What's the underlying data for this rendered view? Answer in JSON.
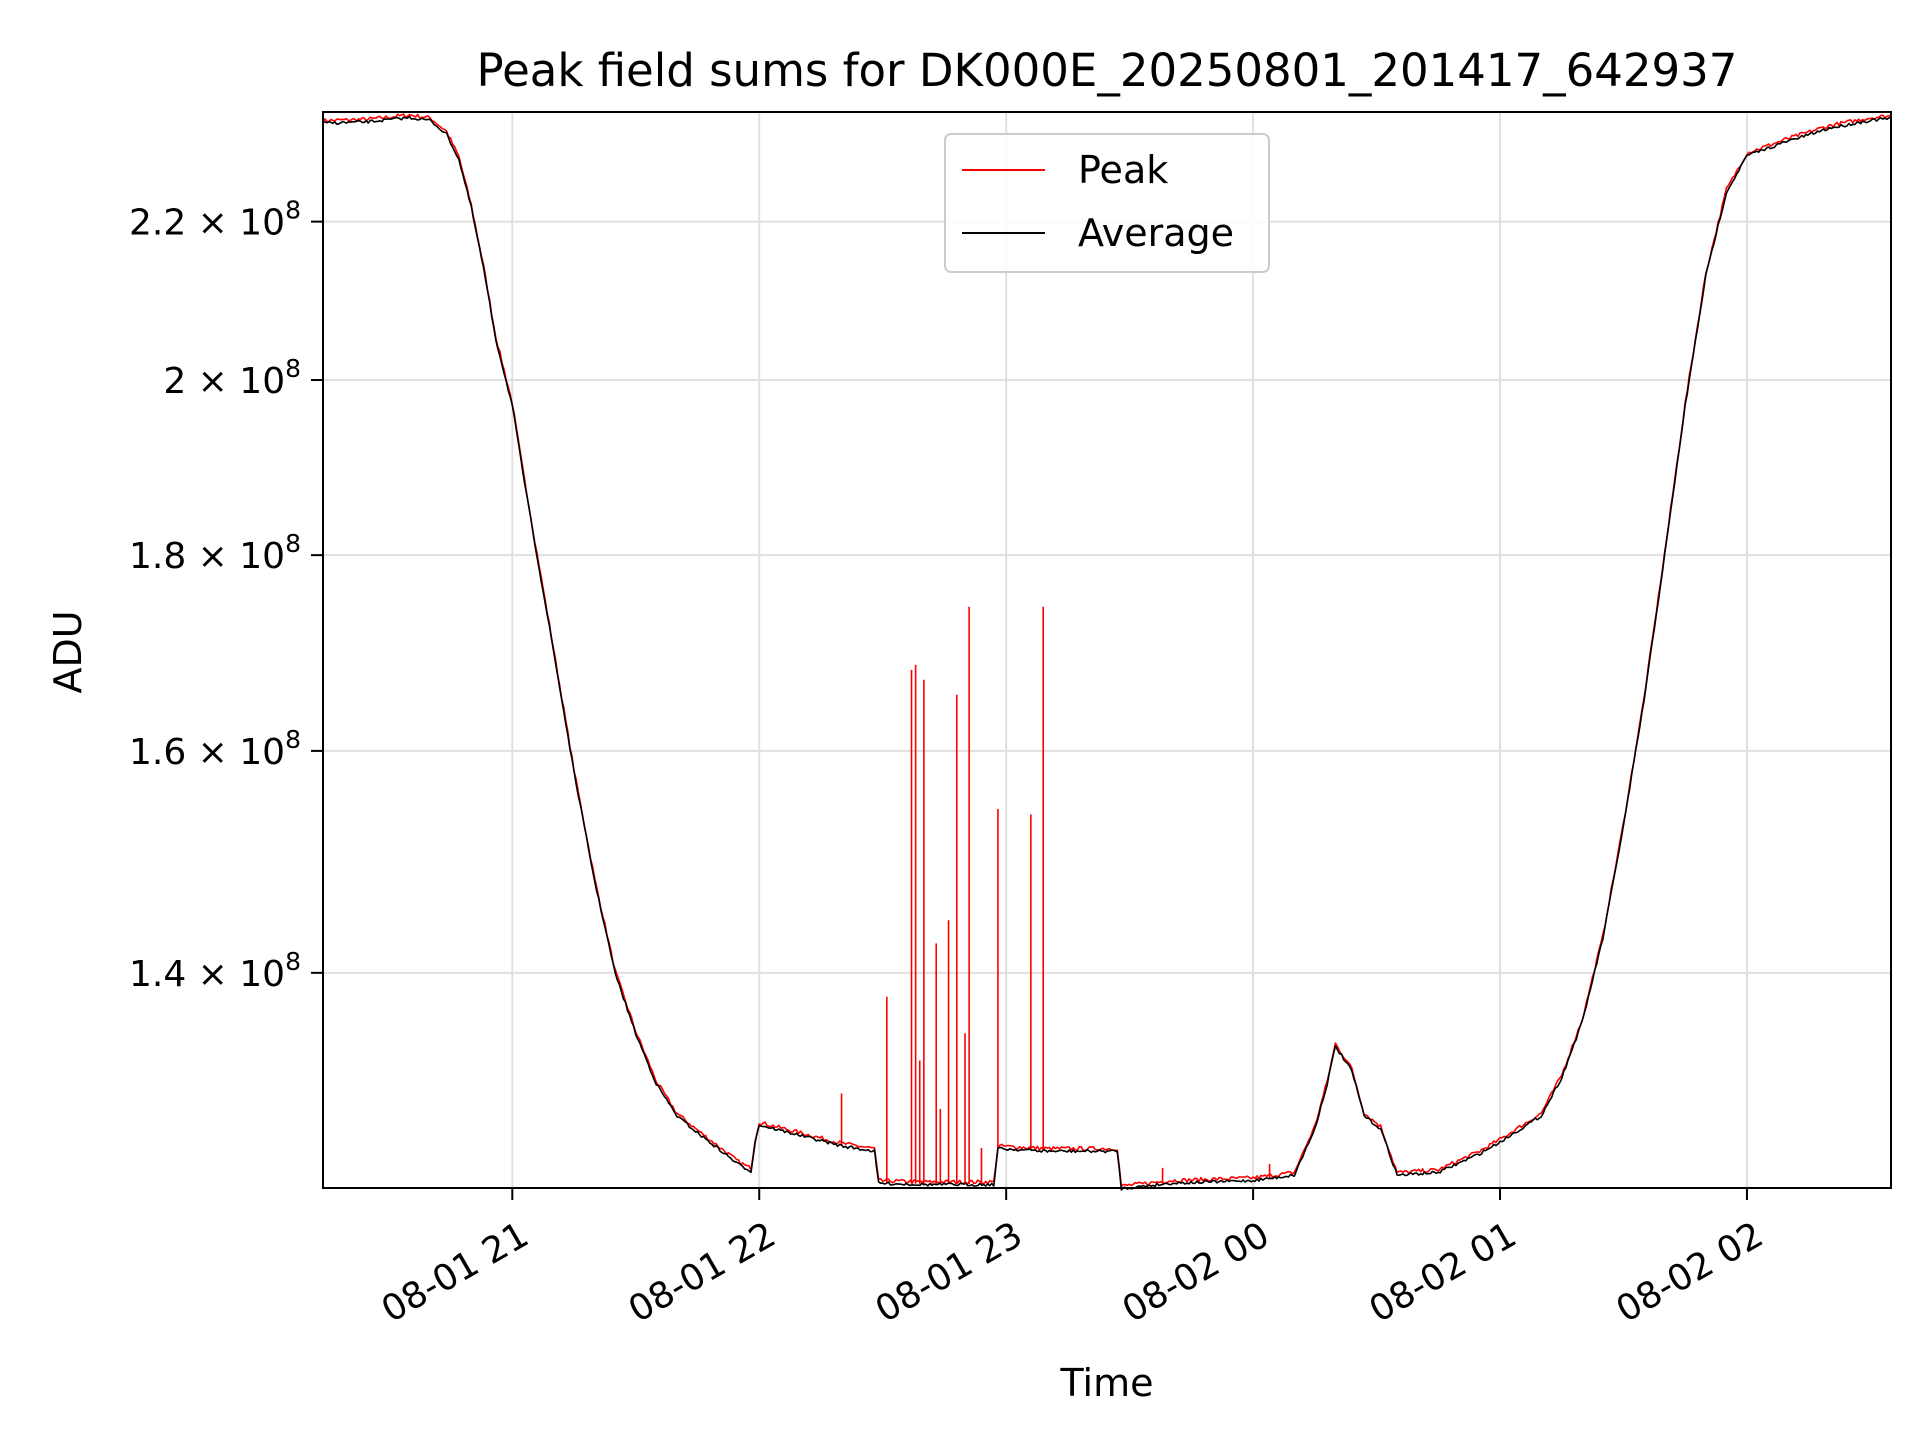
{
  "chart_data": {
    "type": "line",
    "title": "Peak field sums for DK000E_20250801_201417_642937",
    "xlabel": "Time",
    "ylabel": "ADU",
    "yscale": "log",
    "grid": true,
    "legend_position": "top-center",
    "xlim": [
      "2025-08-01 20:14",
      "2025-08-02 02:35"
    ],
    "ylim": [
      123000000,
      235000000
    ],
    "x_ticks": [
      {
        "t": "2025-08-01 21:00",
        "label": "08-01 21"
      },
      {
        "t": "2025-08-01 22:00",
        "label": "08-01 22"
      },
      {
        "t": "2025-08-01 23:00",
        "label": "08-01 23"
      },
      {
        "t": "2025-08-02 00:00",
        "label": "08-02 00"
      },
      {
        "t": "2025-08-02 01:00",
        "label": "08-02 01"
      },
      {
        "t": "2025-08-02 02:00",
        "label": "08-02 02"
      }
    ],
    "y_ticks": [
      {
        "v": 140000000,
        "mant": "1.4",
        "exp": "8"
      },
      {
        "v": 160000000,
        "mant": "1.6",
        "exp": "8"
      },
      {
        "v": 180000000,
        "mant": "1.8",
        "exp": "8"
      },
      {
        "v": 200000000,
        "mant": "2",
        "exp": "8"
      },
      {
        "v": 220000000,
        "mant": "2.2",
        "exp": "8"
      }
    ],
    "series": [
      {
        "name": "Average",
        "color": "#000000",
        "points": [
          [
            "2025-08-01 20:14",
            233500000
          ],
          [
            "2025-08-01 20:25",
            233700000
          ],
          [
            "2025-08-01 20:35",
            234300000
          ],
          [
            "2025-08-01 20:40",
            233900000
          ],
          [
            "2025-08-01 20:44",
            232000000
          ],
          [
            "2025-08-01 20:47",
            228500000
          ],
          [
            "2025-08-01 20:50",
            222000000
          ],
          [
            "2025-08-01 20:53",
            214000000
          ],
          [
            "2025-08-01 20:56",
            205000000
          ],
          [
            "2025-08-01 21:00",
            197000000
          ],
          [
            "2025-08-01 21:03",
            188000000
          ],
          [
            "2025-08-01 21:06",
            180000000
          ],
          [
            "2025-08-01 21:10",
            170000000
          ],
          [
            "2025-08-01 21:15",
            158000000
          ],
          [
            "2025-08-01 21:20",
            148000000
          ],
          [
            "2025-08-01 21:25",
            140000000
          ],
          [
            "2025-08-01 21:30",
            135000000
          ],
          [
            "2025-08-01 21:35",
            131000000
          ],
          [
            "2025-08-01 21:40",
            128500000
          ],
          [
            "2025-08-01 21:45",
            127200000
          ],
          [
            "2025-08-01 21:50",
            126000000
          ],
          [
            "2025-08-01 21:55",
            124800000
          ],
          [
            "2025-08-01 21:58",
            124300000
          ],
          [
            "2025-08-01 21:59",
            126500000
          ],
          [
            "2025-08-01 22:00",
            127800000
          ],
          [
            "2025-08-01 22:10",
            127000000
          ],
          [
            "2025-08-01 22:20",
            126200000
          ],
          [
            "2025-08-01 22:28",
            125800000
          ],
          [
            "2025-08-01 22:29",
            123400000
          ],
          [
            "2025-08-01 22:40",
            123300000
          ],
          [
            "2025-08-01 22:57",
            123300000
          ],
          [
            "2025-08-01 22:58",
            126000000
          ],
          [
            "2025-08-01 23:10",
            125800000
          ],
          [
            "2025-08-01 23:27",
            125800000
          ],
          [
            "2025-08-01 23:28",
            123000000
          ],
          [
            "2025-08-01 23:40",
            123400000
          ],
          [
            "2025-08-02 00:00",
            123600000
          ],
          [
            "2025-08-02 00:10",
            124000000
          ],
          [
            "2025-08-02 00:15",
            127500000
          ],
          [
            "2025-08-02 00:18",
            131000000
          ],
          [
            "2025-08-02 00:20",
            134000000
          ],
          [
            "2025-08-02 00:24",
            132000000
          ],
          [
            "2025-08-02 00:27",
            128500000
          ],
          [
            "2025-08-02 00:31",
            127500000
          ],
          [
            "2025-08-02 00:35",
            124000000
          ],
          [
            "2025-08-02 00:45",
            124200000
          ],
          [
            "2025-08-02 00:55",
            125600000
          ],
          [
            "2025-08-02 01:00",
            126500000
          ],
          [
            "2025-08-02 01:10",
            128500000
          ],
          [
            "2025-08-02 01:15",
            131500000
          ],
          [
            "2025-08-02 01:20",
            136000000
          ],
          [
            "2025-08-02 01:25",
            143000000
          ],
          [
            "2025-08-02 01:30",
            153000000
          ],
          [
            "2025-08-02 01:35",
            165000000
          ],
          [
            "2025-08-02 01:40",
            180000000
          ],
          [
            "2025-08-02 01:45",
            197000000
          ],
          [
            "2025-08-02 01:50",
            213000000
          ],
          [
            "2025-08-02 01:55",
            224000000
          ],
          [
            "2025-08-02 02:00",
            229000000
          ],
          [
            "2025-08-02 02:10",
            231000000
          ],
          [
            "2025-08-02 02:20",
            232800000
          ],
          [
            "2025-08-02 02:30",
            233900000
          ],
          [
            "2025-08-02 02:35",
            234200000
          ]
        ]
      },
      {
        "name": "Peak",
        "color": "#ff0000",
        "spikes": [
          [
            "2025-08-01 22:20",
            130200000
          ],
          [
            "2025-08-01 22:31",
            138000000
          ],
          [
            "2025-08-01 22:37",
            168000000
          ],
          [
            "2025-08-01 22:38",
            168500000
          ],
          [
            "2025-08-01 22:39",
            132800000
          ],
          [
            "2025-08-01 22:40",
            167000000
          ],
          [
            "2025-08-01 22:43",
            142500000
          ],
          [
            "2025-08-01 22:44",
            129000000
          ],
          [
            "2025-08-01 22:46",
            144500000
          ],
          [
            "2025-08-01 22:48",
            165500000
          ],
          [
            "2025-08-01 22:50",
            135000000
          ],
          [
            "2025-08-01 22:51",
            174500000
          ],
          [
            "2025-08-01 22:54",
            126000000
          ],
          [
            "2025-08-01 22:58",
            154500000
          ],
          [
            "2025-08-01 23:06",
            154000000
          ],
          [
            "2025-08-01 23:09",
            174500000
          ],
          [
            "2025-08-01 23:38",
            124500000
          ],
          [
            "2025-08-02 00:04",
            124800000
          ]
        ]
      }
    ]
  }
}
